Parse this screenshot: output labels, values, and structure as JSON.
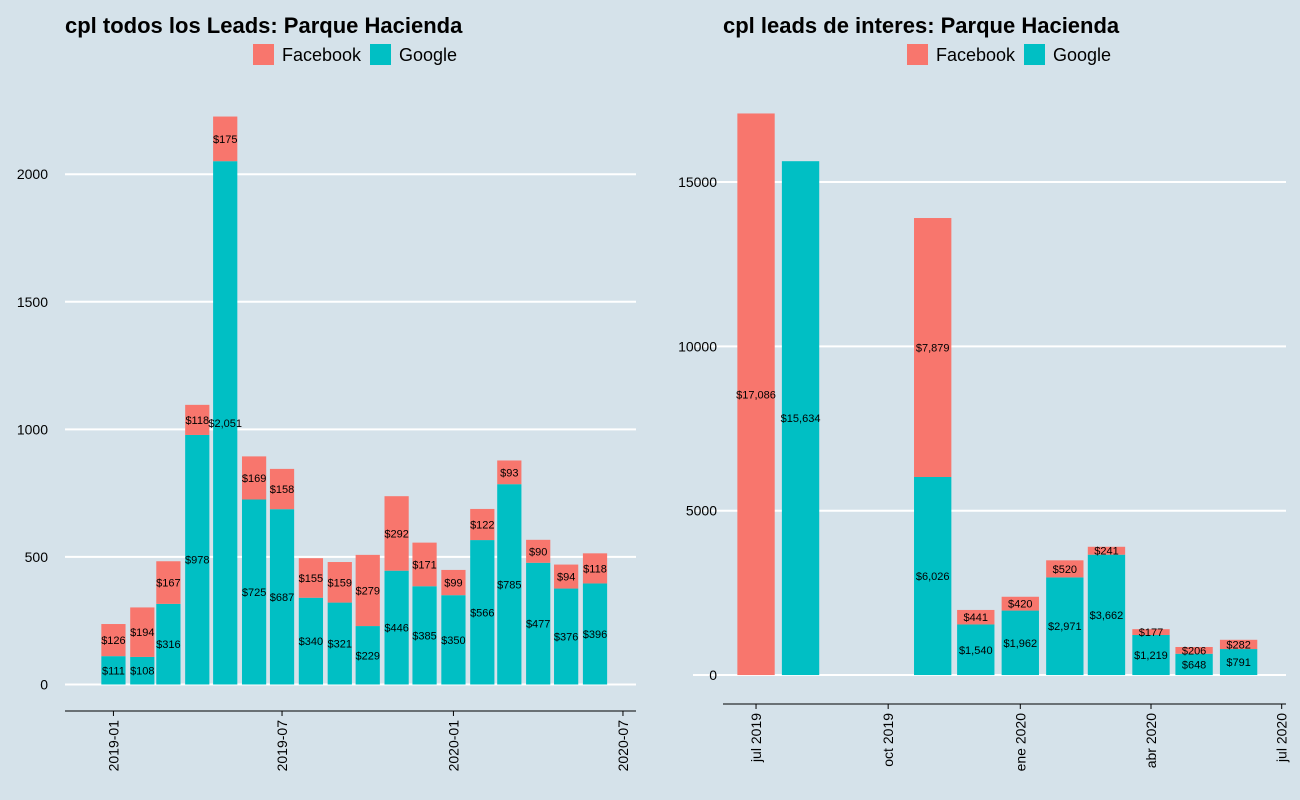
{
  "colors": {
    "background": "#d5e2ea",
    "facebook": "#f8766d",
    "google": "#00bfc4",
    "grid": "#ffffff",
    "axis": "#000000"
  },
  "chart_data": [
    {
      "type": "bar",
      "stacked": true,
      "title": "cpl todos los Leads: Parque Hacienda",
      "xlabel": "",
      "ylabel": "",
      "legend": {
        "position": "top",
        "entries": [
          "Facebook",
          "Google"
        ]
      },
      "ylim": [
        -100,
        2330
      ],
      "yticks": [
        0,
        500,
        1000,
        1500,
        2000
      ],
      "grid": true,
      "x_axis": {
        "type": "date",
        "range": [
          "2018-11-10",
          "2020-07-15"
        ],
        "ticks": [
          {
            "date": "2019-01-01",
            "label": "2019-01"
          },
          {
            "date": "2019-07-01",
            "label": "2019-07"
          },
          {
            "date": "2020-01-01",
            "label": "2020-01"
          },
          {
            "date": "2020-07-01",
            "label": "2020-07"
          }
        ]
      },
      "bar_width_days": 26,
      "x": [
        "2019-01-01",
        "2019-02-01",
        "2019-03-01",
        "2019-04-01",
        "2019-05-01",
        "2019-06-01",
        "2019-07-01",
        "2019-08-01",
        "2019-09-01",
        "2019-10-01",
        "2019-11-01",
        "2019-12-01",
        "2020-01-01",
        "2020-02-01",
        "2020-03-01",
        "2020-04-01",
        "2020-05-01",
        "2020-06-01"
      ],
      "series": [
        {
          "name": "Google",
          "values": [
            111,
            108,
            316,
            978,
            2051,
            725,
            687,
            340,
            321,
            229,
            446,
            385,
            350,
            566,
            785,
            477,
            376,
            396
          ],
          "labels": [
            "$111",
            "$108",
            "$316",
            "$978",
            "$2,051",
            "$725",
            "$687",
            "$340",
            "$321",
            "$229",
            "$446",
            "$385",
            "$350",
            "$566",
            "$785",
            "$477",
            "$376",
            "$396"
          ]
        },
        {
          "name": "Facebook",
          "values": [
            126,
            194,
            167,
            118,
            175,
            169,
            158,
            155,
            159,
            279,
            292,
            171,
            99,
            122,
            93,
            90,
            94,
            118
          ],
          "labels": [
            "$126",
            "$194",
            "$167",
            "$118",
            "$175",
            "$169",
            "$158",
            "$155",
            "$159",
            "$279",
            "$292",
            "$171",
            "$99",
            "$122",
            "$93",
            "$90",
            "$94",
            "$118"
          ]
        }
      ]
    },
    {
      "type": "bar",
      "stacked": true,
      "title": "cpl leads de interes: Parque Hacienda",
      "xlabel": "",
      "ylabel": "",
      "legend": {
        "position": "top",
        "entries": [
          "Facebook",
          "Google"
        ]
      },
      "ylim": [
        -850,
        17800
      ],
      "yticks": [
        0,
        5000,
        10000,
        15000
      ],
      "grid": true,
      "x_axis": {
        "type": "date",
        "range": [
          "2019-06-08",
          "2020-07-04"
        ],
        "ticks": [
          {
            "date": "2019-07-01",
            "label": "jul 2019"
          },
          {
            "date": "2019-10-01",
            "label": "oct 2019"
          },
          {
            "date": "2020-01-01",
            "label": "ene 2020"
          },
          {
            "date": "2020-04-01",
            "label": "abr 2020"
          },
          {
            "date": "2020-07-01",
            "label": "jul 2020"
          }
        ]
      },
      "bar_width_days": 26,
      "x": [
        "2019-07-01",
        "2019-08-01",
        "2019-11-01",
        "2019-12-01",
        "2020-01-01",
        "2020-02-01",
        "2020-03-01",
        "2020-04-01",
        "2020-05-01",
        "2020-06-01"
      ],
      "series": [
        {
          "name": "Google",
          "values": [
            0,
            15634,
            6026,
            1540,
            1962,
            2971,
            3662,
            1219,
            648,
            791
          ],
          "labels": [
            "",
            "$15,634",
            "$6,026",
            "$1,540",
            "$1,962",
            "$2,971",
            "$3,662",
            "$1,219",
            "$648",
            "$791"
          ]
        },
        {
          "name": "Facebook",
          "values": [
            17086,
            0,
            7879,
            441,
            420,
            520,
            241,
            177,
            206,
            282
          ],
          "labels": [
            "$17,086",
            "",
            "$7,879",
            "$441",
            "$420",
            "$520",
            "$241",
            "$177",
            "$206",
            "$282"
          ]
        }
      ]
    }
  ]
}
